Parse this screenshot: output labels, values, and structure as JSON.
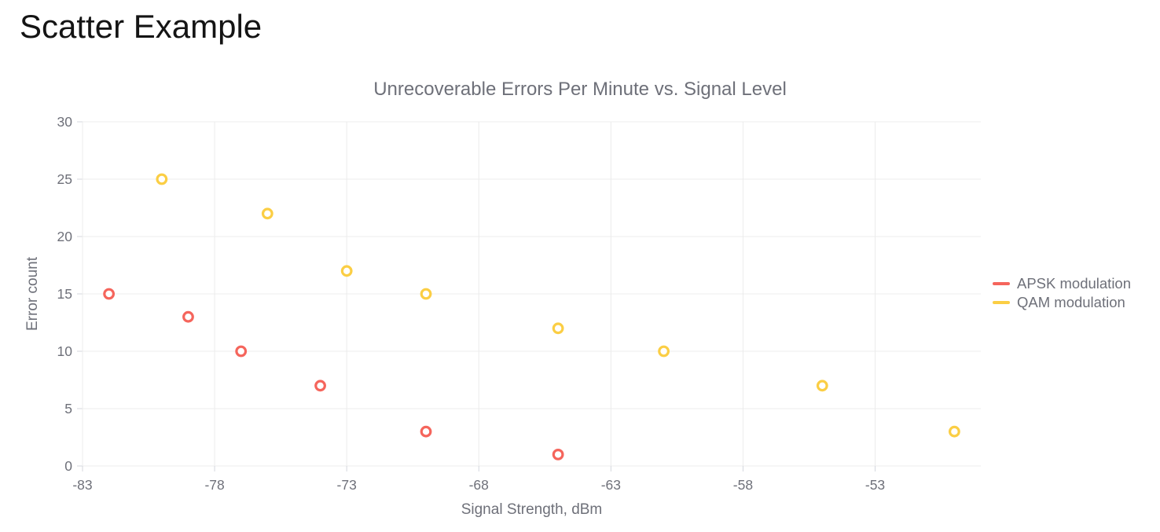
{
  "page": {
    "title": "Scatter Example"
  },
  "chart_data": {
    "type": "scatter",
    "title": "Unrecoverable Errors Per Minute vs. Signal Level",
    "xlabel": "Signal Strength, dBm",
    "ylabel": "Error count",
    "xlim": [
      -83,
      -49
    ],
    "ylim": [
      0,
      30
    ],
    "x_ticks": [
      -83,
      -78,
      -73,
      -68,
      -63,
      -58,
      -53
    ],
    "y_ticks": [
      0,
      5,
      10,
      15,
      20,
      25,
      30
    ],
    "grid": true,
    "legend_position": "right",
    "marker_style": "open-circle",
    "series": [
      {
        "name": "APSK modulation",
        "color": "#F5655C",
        "points": [
          [
            -82,
            15
          ],
          [
            -79,
            13
          ],
          [
            -77,
            10
          ],
          [
            -74,
            7
          ],
          [
            -70,
            3
          ],
          [
            -65,
            1
          ]
        ]
      },
      {
        "name": "QAM modulation",
        "color": "#FBCE44",
        "points": [
          [
            -80,
            25
          ],
          [
            -76,
            22
          ],
          [
            -73,
            17
          ],
          [
            -70,
            15
          ],
          [
            -65,
            12
          ],
          [
            -61,
            10
          ],
          [
            -55,
            7
          ],
          [
            -50,
            3
          ]
        ]
      }
    ]
  }
}
